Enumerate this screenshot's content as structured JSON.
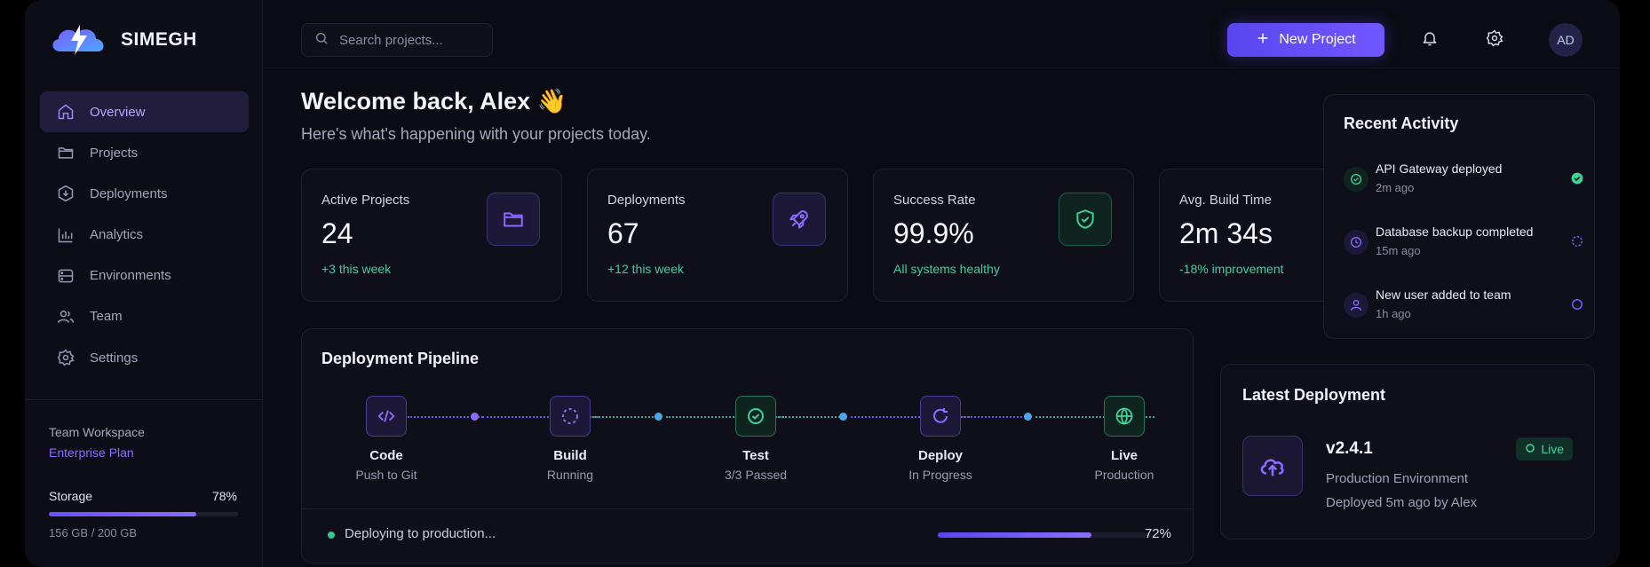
{
  "brand": {
    "name": "SIMEGH"
  },
  "sidebar": {
    "items": [
      {
        "label": "Overview",
        "icon": "home-icon",
        "active": true
      },
      {
        "label": "Projects",
        "icon": "folder-icon",
        "active": false
      },
      {
        "label": "Deployments",
        "icon": "deploy-icon",
        "active": false
      },
      {
        "label": "Analytics",
        "icon": "bar-chart-icon",
        "active": false
      },
      {
        "label": "Environments",
        "icon": "server-icon",
        "active": false
      },
      {
        "label": "Team",
        "icon": "users-icon",
        "active": false
      },
      {
        "label": "Settings",
        "icon": "gear-icon",
        "active": false
      }
    ],
    "workspace": {
      "label": "Team Workspace",
      "plan": "Enterprise Plan"
    },
    "storage": {
      "label": "Storage",
      "percent_label": "78%",
      "percent": 0.78,
      "size": "156 GB / 200 GB"
    }
  },
  "topbar": {
    "search_placeholder": "Search projects...",
    "new_project_label": "New Project",
    "avatar_initials": "AD"
  },
  "welcome": {
    "title": "Welcome back, Alex 👋",
    "subtitle": "Here's what's happening with your projects today."
  },
  "stats": [
    {
      "label": "Active Projects",
      "value": "24",
      "delta": "+3 this week",
      "icon": "folder-icon"
    },
    {
      "label": "Deployments",
      "value": "67",
      "delta": "+12 this week",
      "icon": "rocket-icon"
    },
    {
      "label": "Success Rate",
      "value": "99.9%",
      "delta": "All systems healthy",
      "icon": "shield-check-icon"
    },
    {
      "label": "Avg. Build Time",
      "value": "2m 34s",
      "delta": "-18% improvement",
      "icon": "clock-icon"
    }
  ],
  "pipeline": {
    "title": "Deployment Pipeline",
    "stages": [
      {
        "name": "Code",
        "status": "Push to Git",
        "icon": "code-icon"
      },
      {
        "name": "Build",
        "status": "Running",
        "icon": "spinner-icon"
      },
      {
        "name": "Test",
        "status": "3/3 Passed",
        "icon": "check-circle-icon"
      },
      {
        "name": "Deploy",
        "status": "In Progress",
        "icon": "refresh-icon"
      },
      {
        "name": "Live",
        "status": "Production",
        "icon": "globe-icon"
      }
    ],
    "status_text": "Deploying to production...",
    "progress_label": "72%",
    "progress": 0.72
  },
  "activity": {
    "title": "Recent Activity",
    "items": [
      {
        "title": "API Gateway deployed",
        "time": "2m ago",
        "icon": "check-circle-icon",
        "state": "done"
      },
      {
        "title": "Database backup completed",
        "time": "15m ago",
        "icon": "clock-icon",
        "state": "pending"
      },
      {
        "title": "New user added to team",
        "time": "1h ago",
        "icon": "user-icon",
        "state": "pending"
      }
    ]
  },
  "latest_deployment": {
    "title": "Latest Deployment",
    "version": "v2.4.1",
    "environment": "Production Environment",
    "deployed_by": "Deployed 5m ago by Alex",
    "status": "Live"
  },
  "colors": {
    "accent": "#7157ff",
    "success": "#3ed19a",
    "background": "#0b0b14"
  }
}
